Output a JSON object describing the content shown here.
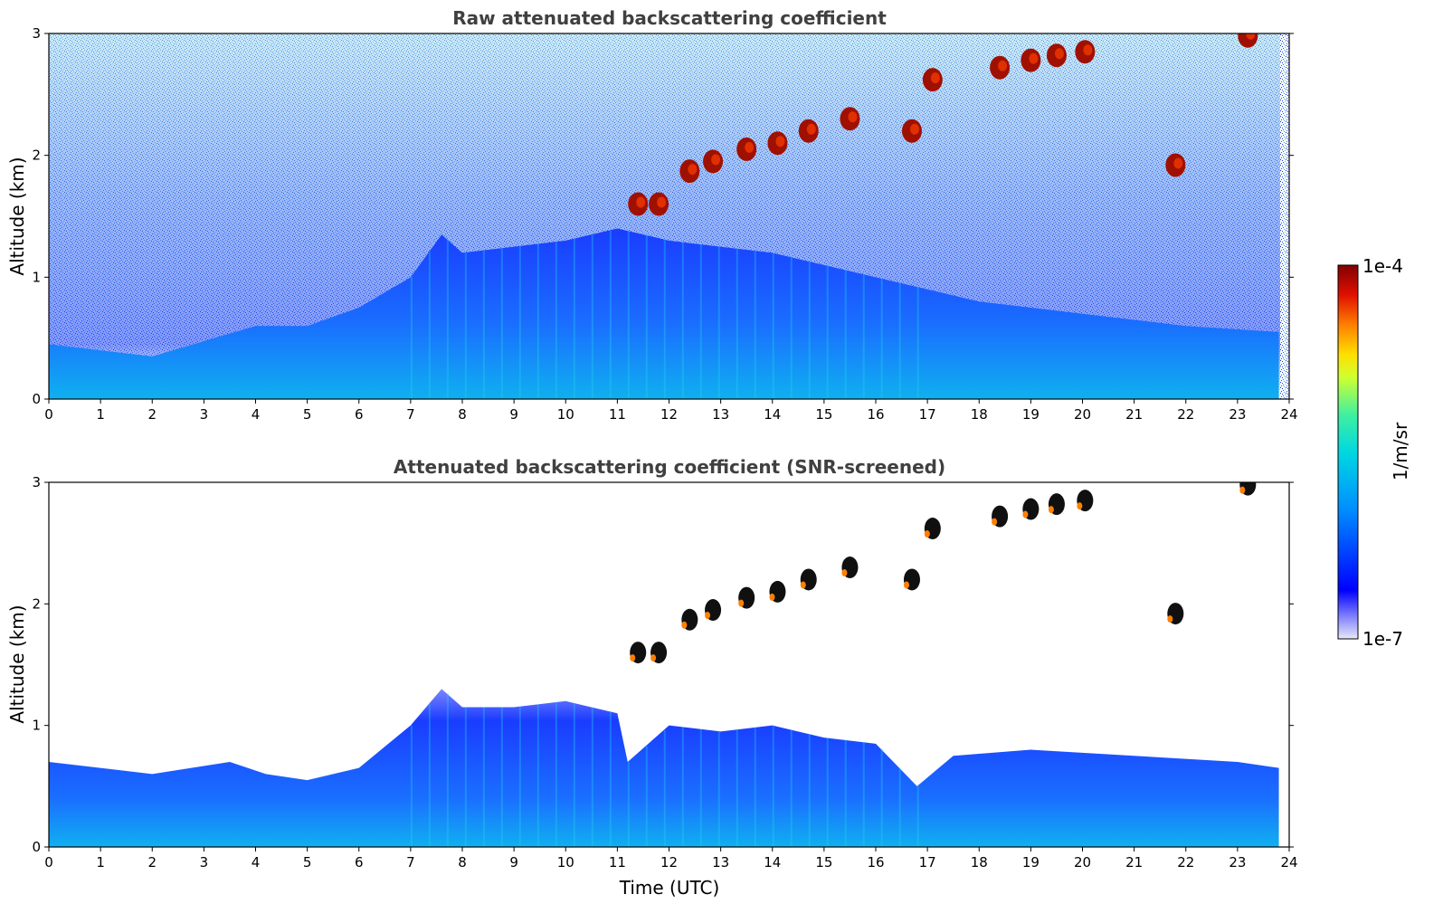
{
  "chart_data": [
    {
      "type": "heatmap",
      "title": "Raw attenuated backscattering coefficient",
      "xlabel": "",
      "ylabel": "Altitude (km)",
      "xlim": [
        0,
        24
      ],
      "ylim": [
        0,
        3
      ],
      "x_ticks": [
        "0",
        "1",
        "2",
        "3",
        "4",
        "5",
        "6",
        "7",
        "8",
        "9",
        "10",
        "11",
        "12",
        "13",
        "14",
        "15",
        "16",
        "17",
        "18",
        "19",
        "20",
        "21",
        "22",
        "23",
        "24"
      ],
      "y_ticks": [
        "0",
        "1",
        "2",
        "3"
      ],
      "aerosol_layer_top_km": [
        {
          "x": 0,
          "y": 0.45
        },
        {
          "x": 2,
          "y": 0.35
        },
        {
          "x": 4,
          "y": 0.6
        },
        {
          "x": 5,
          "y": 0.6
        },
        {
          "x": 6,
          "y": 0.75
        },
        {
          "x": 7,
          "y": 1.0
        },
        {
          "x": 7.6,
          "y": 1.35
        },
        {
          "x": 8,
          "y": 1.2
        },
        {
          "x": 10,
          "y": 1.3
        },
        {
          "x": 11,
          "y": 1.4
        },
        {
          "x": 12,
          "y": 1.3
        },
        {
          "x": 14,
          "y": 1.2
        },
        {
          "x": 16,
          "y": 1.0
        },
        {
          "x": 17,
          "y": 0.9
        },
        {
          "x": 18,
          "y": 0.8
        },
        {
          "x": 20,
          "y": 0.7
        },
        {
          "x": 22,
          "y": 0.6
        },
        {
          "x": 23.8,
          "y": 0.55
        }
      ],
      "clouds": [
        {
          "x": 11.4,
          "y": 1.6
        },
        {
          "x": 11.8,
          "y": 1.6
        },
        {
          "x": 12.4,
          "y": 1.87
        },
        {
          "x": 12.85,
          "y": 1.95
        },
        {
          "x": 13.5,
          "y": 2.05
        },
        {
          "x": 14.1,
          "y": 2.1
        },
        {
          "x": 14.7,
          "y": 2.2
        },
        {
          "x": 15.5,
          "y": 2.3
        },
        {
          "x": 16.7,
          "y": 2.2
        },
        {
          "x": 17.1,
          "y": 2.62
        },
        {
          "x": 18.4,
          "y": 2.72
        },
        {
          "x": 19.0,
          "y": 2.78
        },
        {
          "x": 19.5,
          "y": 2.82
        },
        {
          "x": 20.05,
          "y": 2.85
        },
        {
          "x": 21.8,
          "y": 1.92
        },
        {
          "x": 23.2,
          "y": 2.98
        }
      ]
    },
    {
      "type": "heatmap",
      "title": "Attenuated backscattering coefficient (SNR-screened)",
      "xlabel": "Time (UTC)",
      "ylabel": "Altitude (km)",
      "xlim": [
        0,
        24
      ],
      "ylim": [
        0,
        3
      ],
      "x_ticks": [
        "0",
        "1",
        "2",
        "3",
        "4",
        "5",
        "6",
        "7",
        "8",
        "9",
        "10",
        "11",
        "12",
        "13",
        "14",
        "15",
        "16",
        "17",
        "18",
        "19",
        "20",
        "21",
        "22",
        "23",
        "24"
      ],
      "y_ticks": [
        "0",
        "1",
        "2",
        "3"
      ],
      "screened_layer_top_km": [
        {
          "x": 0,
          "y": 0.7
        },
        {
          "x": 2,
          "y": 0.6
        },
        {
          "x": 3.5,
          "y": 0.7
        },
        {
          "x": 4.2,
          "y": 0.6
        },
        {
          "x": 5,
          "y": 0.55
        },
        {
          "x": 6,
          "y": 0.65
        },
        {
          "x": 7,
          "y": 1.0
        },
        {
          "x": 7.6,
          "y": 1.3
        },
        {
          "x": 8,
          "y": 1.15
        },
        {
          "x": 9,
          "y": 1.15
        },
        {
          "x": 10,
          "y": 1.2
        },
        {
          "x": 11,
          "y": 1.1
        },
        {
          "x": 11.2,
          "y": 0.7
        },
        {
          "x": 12,
          "y": 1.0
        },
        {
          "x": 13,
          "y": 0.95
        },
        {
          "x": 14,
          "y": 1.0
        },
        {
          "x": 15,
          "y": 0.9
        },
        {
          "x": 16,
          "y": 0.85
        },
        {
          "x": 16.8,
          "y": 0.5
        },
        {
          "x": 17.5,
          "y": 0.75
        },
        {
          "x": 19,
          "y": 0.8
        },
        {
          "x": 21,
          "y": 0.75
        },
        {
          "x": 23,
          "y": 0.7
        },
        {
          "x": 23.8,
          "y": 0.65
        }
      ],
      "clouds": [
        {
          "x": 11.4,
          "y": 1.6
        },
        {
          "x": 11.8,
          "y": 1.6
        },
        {
          "x": 12.4,
          "y": 1.87
        },
        {
          "x": 12.85,
          "y": 1.95
        },
        {
          "x": 13.5,
          "y": 2.05
        },
        {
          "x": 14.1,
          "y": 2.1
        },
        {
          "x": 14.7,
          "y": 2.2
        },
        {
          "x": 15.5,
          "y": 2.3
        },
        {
          "x": 16.7,
          "y": 2.2
        },
        {
          "x": 17.1,
          "y": 2.62
        },
        {
          "x": 18.4,
          "y": 2.72
        },
        {
          "x": 19.0,
          "y": 2.78
        },
        {
          "x": 19.5,
          "y": 2.82
        },
        {
          "x": 20.05,
          "y": 2.85
        },
        {
          "x": 21.8,
          "y": 1.92
        },
        {
          "x": 23.2,
          "y": 2.98
        }
      ]
    }
  ],
  "colorbar": {
    "label": "1/m/sr",
    "max_label": "1e-4",
    "min_label": "1e-7",
    "colors": [
      "#0000ff",
      "#00a0ff",
      "#00e0d0",
      "#60ff80",
      "#e0ff20",
      "#ffc000",
      "#ff6000",
      "#e00000",
      "#800000"
    ]
  }
}
